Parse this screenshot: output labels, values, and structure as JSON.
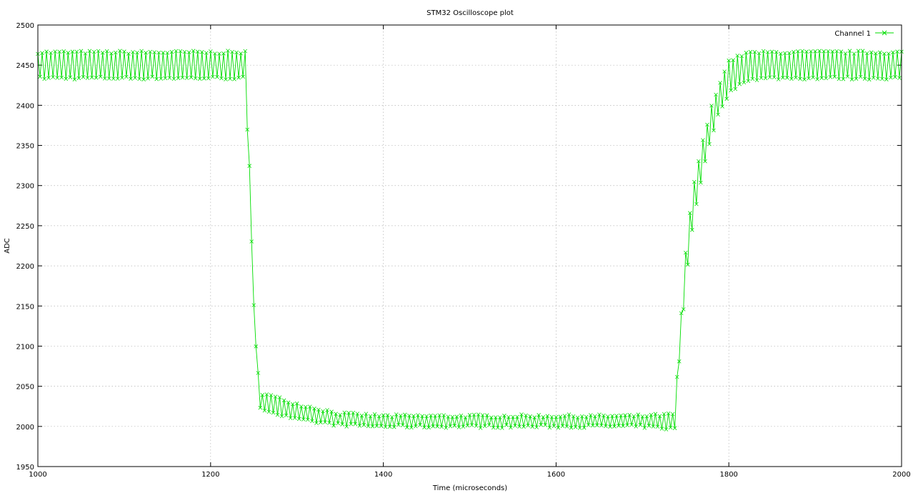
{
  "chart_data": {
    "type": "line",
    "title": "STM32 Oscilloscope plot",
    "xlabel": "Time (microseconds)",
    "ylabel": "ADC",
    "xlim": [
      1000,
      2000
    ],
    "ylim": [
      1950,
      2500
    ],
    "x_ticks": [
      1000,
      1200,
      1400,
      1600,
      1800,
      2000
    ],
    "y_ticks": [
      1950,
      2000,
      2050,
      2100,
      2150,
      2200,
      2250,
      2300,
      2350,
      2400,
      2450,
      2500
    ],
    "grid": true,
    "legend_position": "top-right",
    "marker": "x",
    "series": [
      {
        "name": "Channel 1",
        "color": "#00dd00",
        "envelope_description_points": {
          "x": [
            1000,
            1240,
            1242,
            1246,
            1250,
            1254,
            1256,
            1270,
            1300,
            1350,
            1400,
            1500,
            1600,
            1700,
            1738,
            1742,
            1746,
            1750,
            1755,
            1760,
            1770,
            1780,
            1790,
            1800,
            1820,
            1850,
            1900,
            2000
          ],
          "upper": [
            2466,
            2466,
            2392,
            2300,
            2150,
            2095,
            2042,
            2038,
            2028,
            2016,
            2013,
            2013,
            2013,
            2013,
            2015,
            2108,
            2150,
            2215,
            2265,
            2305,
            2355,
            2398,
            2430,
            2455,
            2465,
            2466,
            2466,
            2466
          ],
          "lower": [
            2434,
            2434,
            2380,
            2285,
            2135,
            2080,
            2025,
            2018,
            2008,
            2002,
            2000,
            2000,
            2000,
            2000,
            1997,
            2075,
            2125,
            2180,
            2225,
            2265,
            2318,
            2362,
            2395,
            2415,
            2432,
            2434,
            2434,
            2434
          ]
        }
      }
    ]
  }
}
